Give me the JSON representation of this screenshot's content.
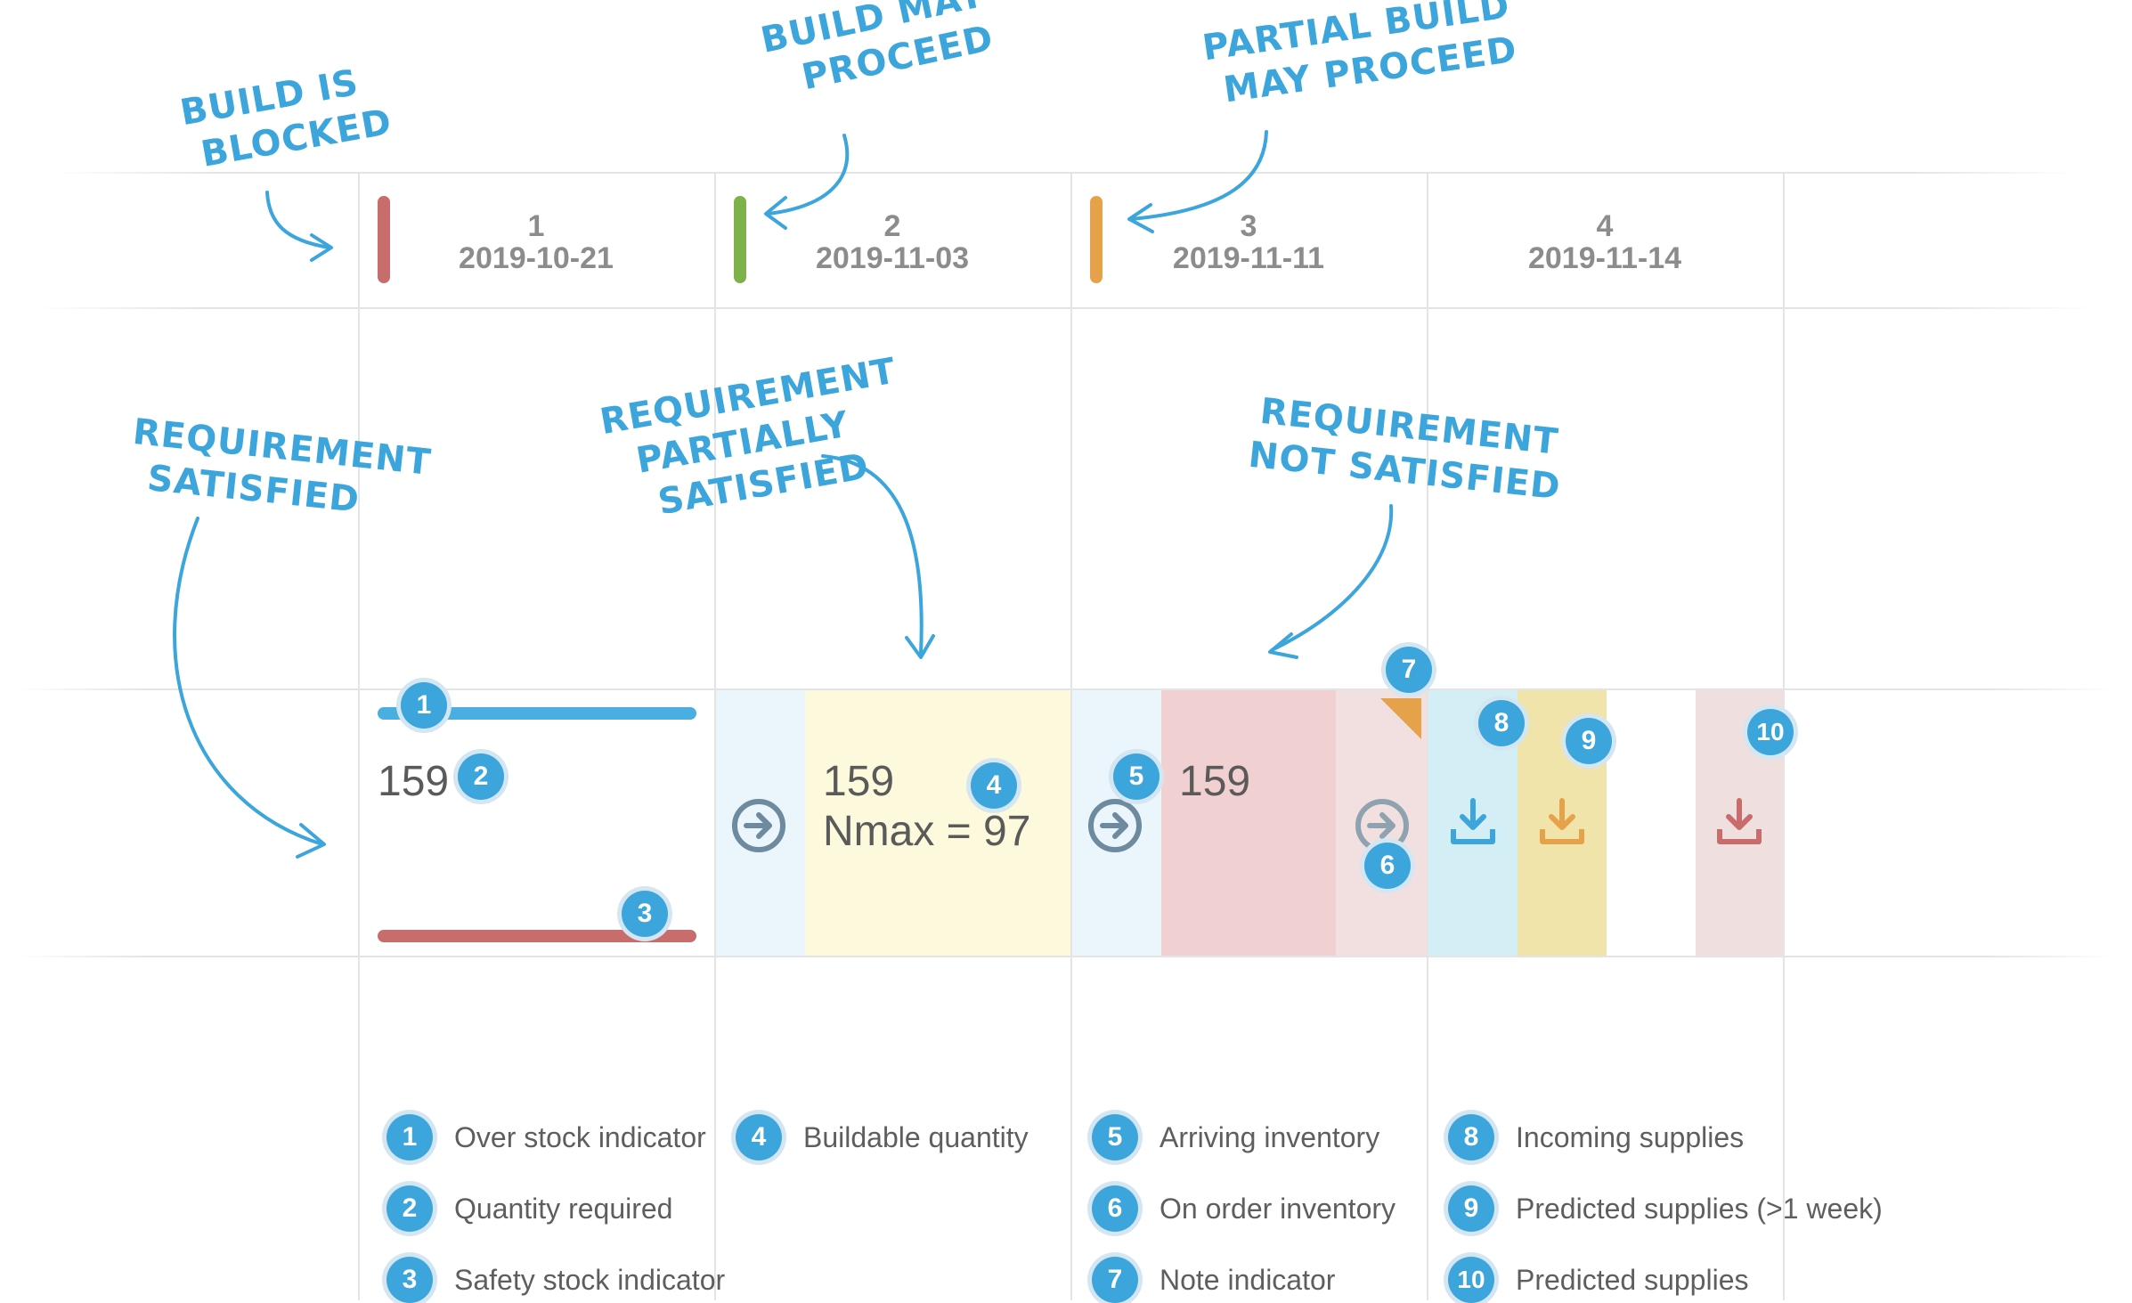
{
  "periods": [
    {
      "num": "1",
      "date": "2019-10-21",
      "status_color": "#c96c6c"
    },
    {
      "num": "2",
      "date": "2019-11-03",
      "status_color": "#7db14a"
    },
    {
      "num": "3",
      "date": "2019-11-11",
      "status_color": "#e6a24a"
    },
    {
      "num": "4",
      "date": "2019-11-14"
    }
  ],
  "annotations": {
    "blocked": [
      "Build is",
      "blocked"
    ],
    "may_proceed": [
      "Build may",
      "proceed"
    ],
    "partial": [
      "Partial build",
      "may proceed"
    ],
    "satisfied": [
      "Requirement",
      "satisfied"
    ],
    "partially": [
      "Requirement",
      "partially",
      "satisfied"
    ],
    "not_satisfied": [
      "Requirement",
      "not satisfied"
    ]
  },
  "cells": {
    "p1_qty": "159",
    "p2_qty": "159",
    "p2_nmax": "Nmax = 97",
    "p3_qty": "159"
  },
  "badges": {
    "b1": "1",
    "b2": "2",
    "b3": "3",
    "b4": "4",
    "b5": "5",
    "b6": "6",
    "b7": "7",
    "b8": "8",
    "b9": "9",
    "b10": "10"
  },
  "legend": [
    {
      "num": "1",
      "label": "Over stock indicator"
    },
    {
      "num": "2",
      "label": "Quantity required"
    },
    {
      "num": "3",
      "label": "Safety stock indicator"
    },
    {
      "num": "4",
      "label": "Buildable quantity"
    },
    {
      "num": "5",
      "label": "Arriving inventory"
    },
    {
      "num": "6",
      "label": "On order inventory"
    },
    {
      "num": "7",
      "label": "Note indicator"
    },
    {
      "num": "8",
      "label": "Incoming supplies"
    },
    {
      "num": "9",
      "label": "Predicted supplies (>1 week)"
    },
    {
      "num": "10",
      "label": "Predicted supplies"
    }
  ],
  "colors": {
    "accent": "#3ba5dc",
    "over_stock": "#4aaee0",
    "safety_stock": "#c96c6c",
    "arriving": "#ebf5fc",
    "buildable": "#fcf9dc",
    "shortage": "#f0d0d0",
    "on_order": "#f2e0e0",
    "incoming": "#d4eef6",
    "predicted_week": "#f0e4aa",
    "predicted": "#f0dfdf"
  },
  "icons": [
    "arrow-right-circle-icon",
    "download-tray-icon",
    "note-corner-icon"
  ]
}
